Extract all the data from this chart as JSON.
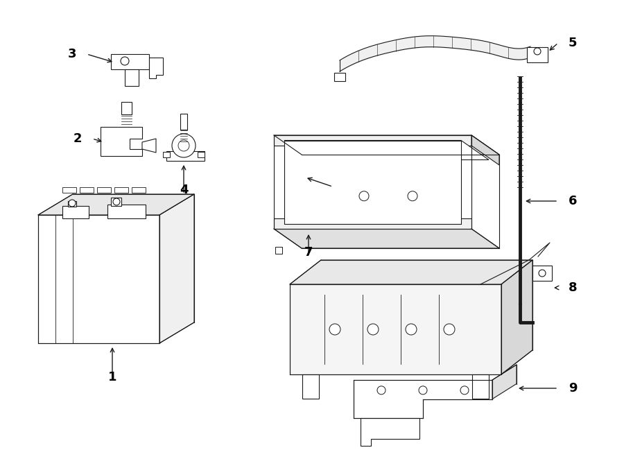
{
  "bg_color": "#ffffff",
  "line_color": "#1a1a1a",
  "fig_width": 9.0,
  "fig_height": 6.62,
  "dpi": 100,
  "lw": 0.8,
  "face_color": "#ffffff",
  "shaded_color": "#f0f0f0"
}
